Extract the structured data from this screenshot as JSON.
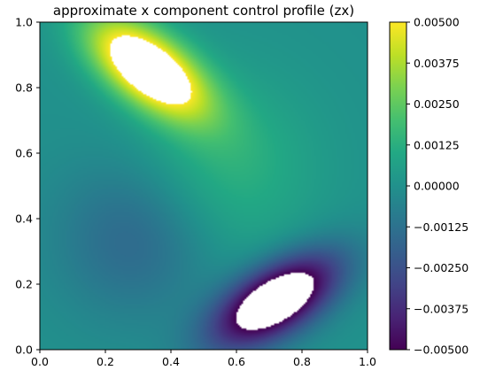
{
  "chart_data": {
    "type": "heatmap",
    "title": "approximate x component control profile (zx)",
    "xlim": [
      0.0,
      1.0
    ],
    "ylim": [
      0.0,
      1.0
    ],
    "x_ticks": [
      "0.0",
      "0.2",
      "0.4",
      "0.6",
      "0.8",
      "1.0"
    ],
    "y_ticks": [
      "0.0",
      "0.2",
      "0.4",
      "0.6",
      "0.8",
      "1.0"
    ],
    "colorbar": {
      "range": [
        -0.005,
        0.005
      ],
      "ticks": [
        "0.00500",
        "0.00375",
        "0.00250",
        "0.00125",
        "0.00000",
        "−0.00125",
        "−0.00250",
        "−0.00375",
        "−0.00500"
      ],
      "colormap": "viridis"
    },
    "features": [
      {
        "kind": "positive-peak",
        "center": [
          0.33,
          0.86
        ],
        "value": 0.005
      },
      {
        "kind": "negative-trough",
        "center": [
          0.72,
          0.15
        ],
        "value": -0.005
      }
    ],
    "background_value": 0.0,
    "grid": false
  },
  "colors": {
    "viridis": [
      "#440154",
      "#482475",
      "#414487",
      "#355f8d",
      "#2a788e",
      "#21918c",
      "#22a884",
      "#44bf70",
      "#7ad151",
      "#bddf26",
      "#fde725"
    ]
  }
}
